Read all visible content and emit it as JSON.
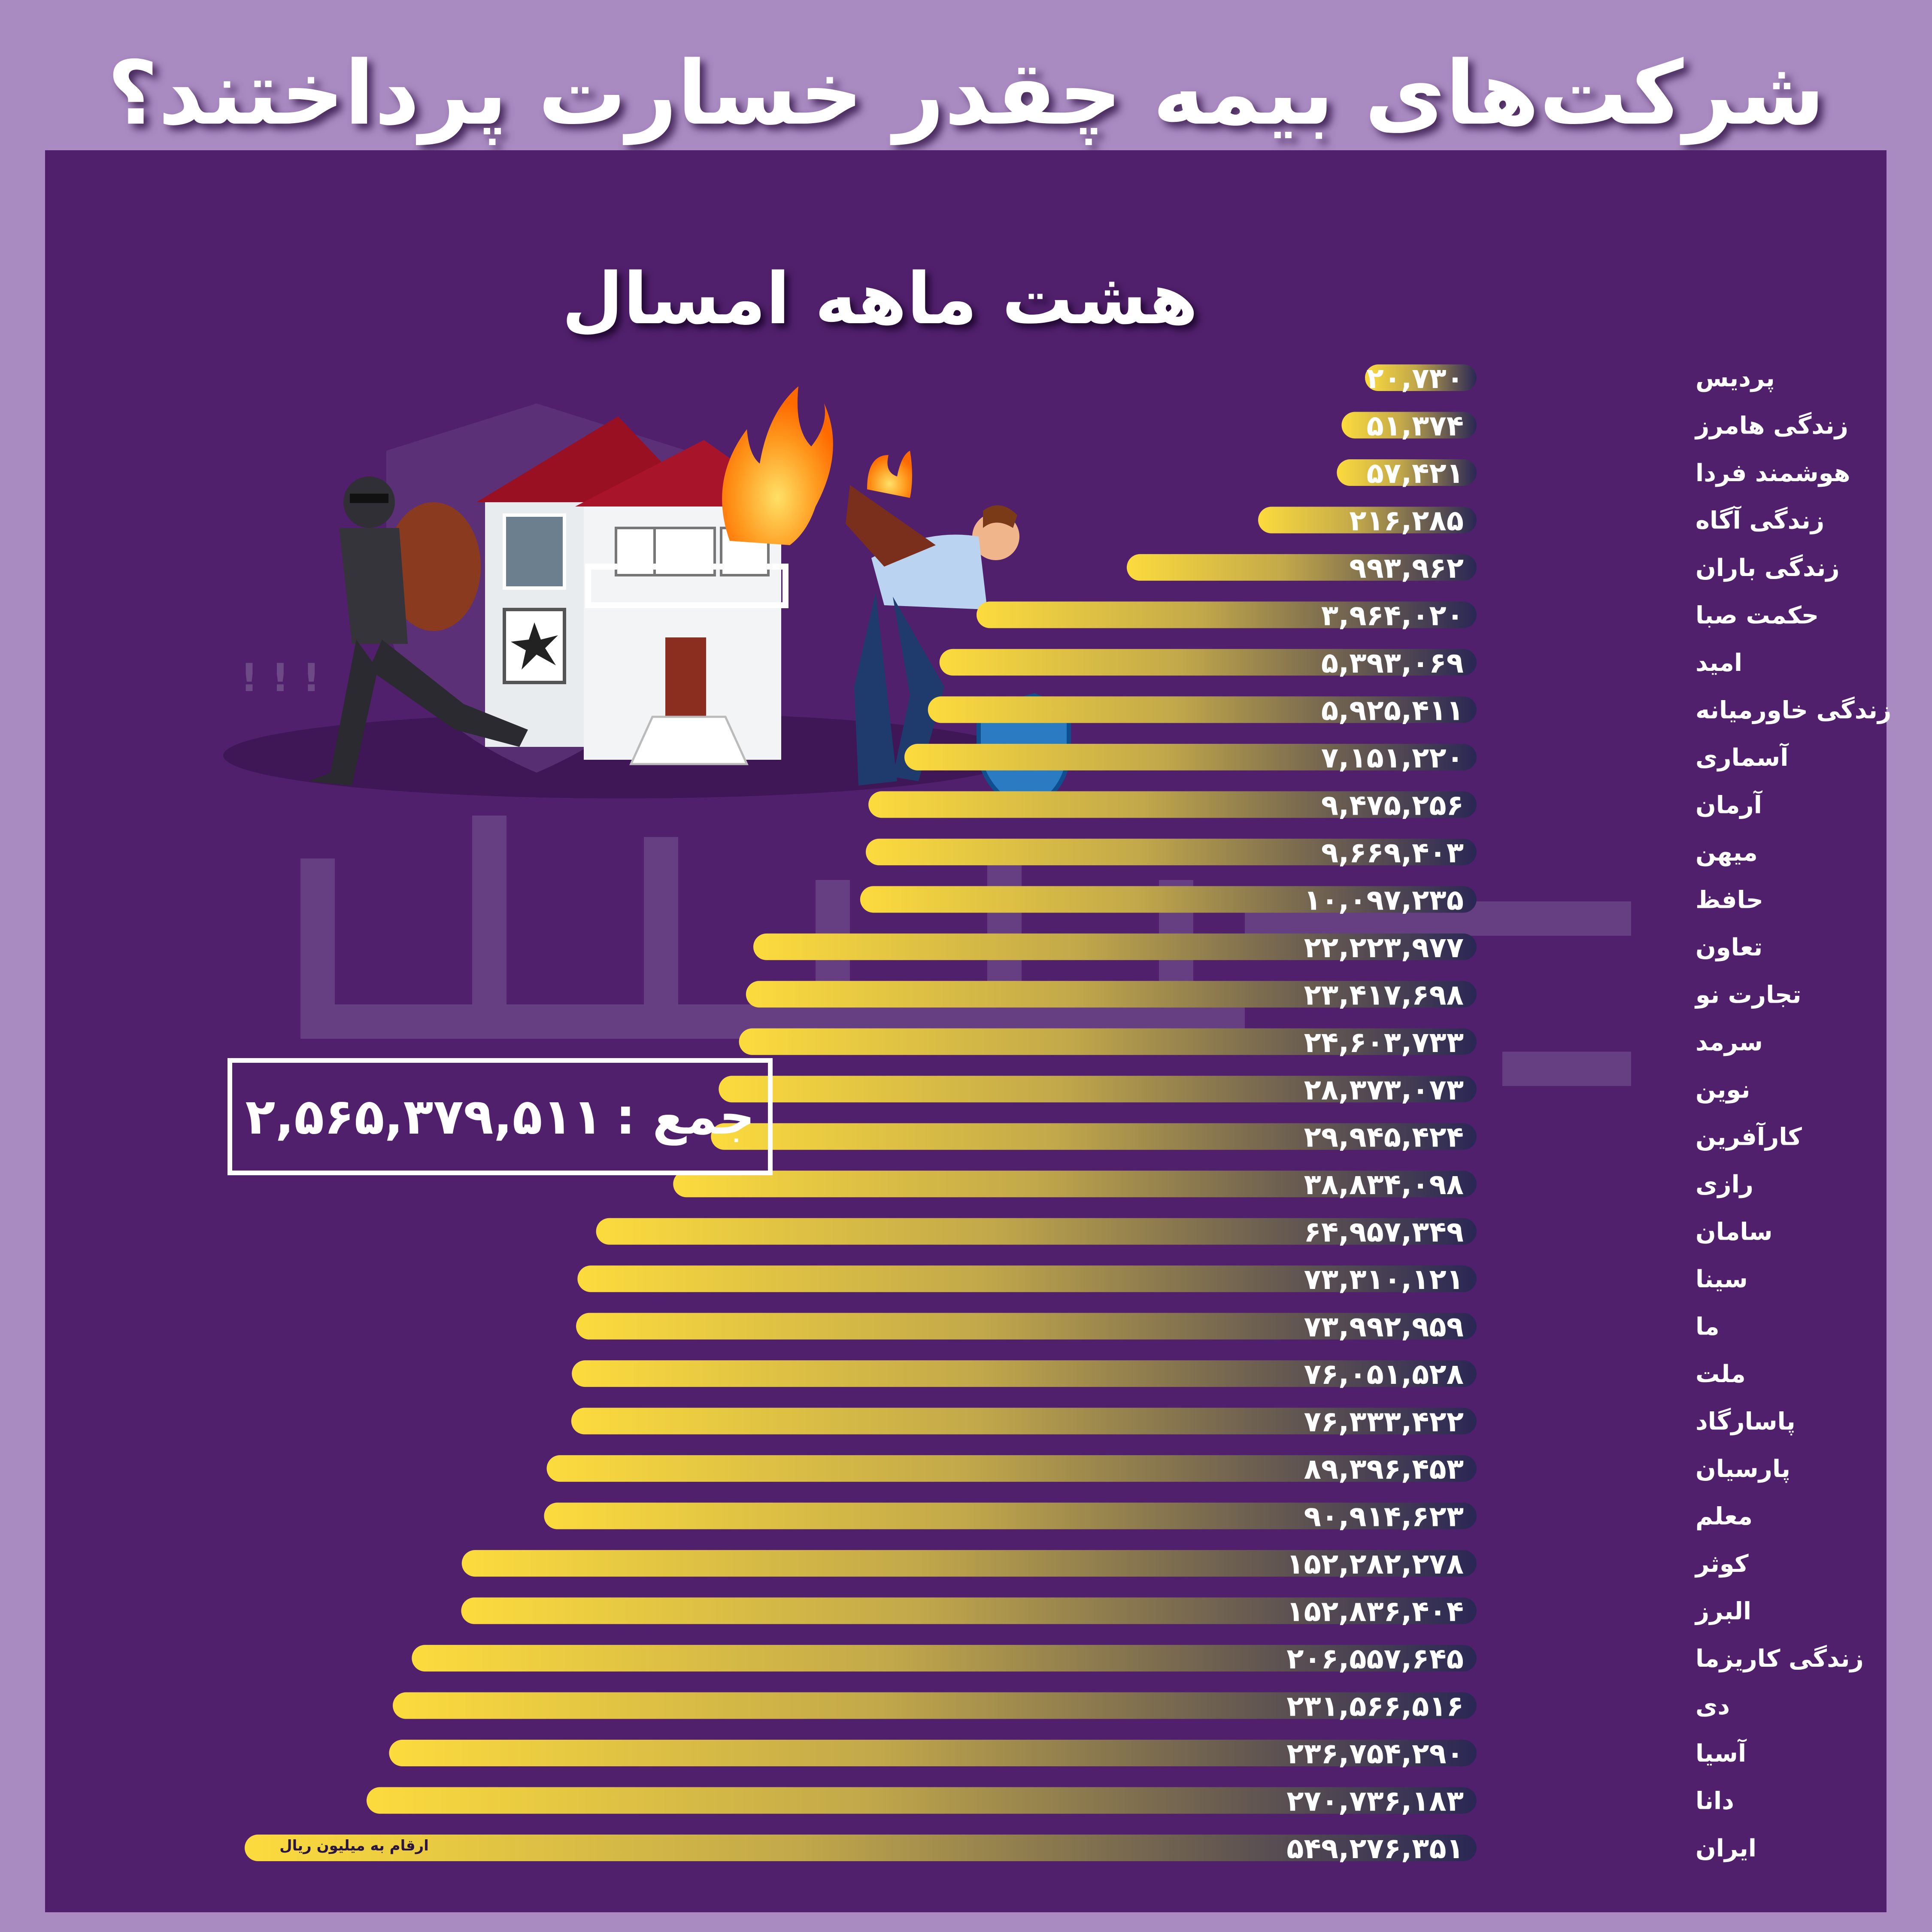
{
  "header": {
    "title": "شرکت‌های بیمه چقدر خسارت پرداختند؟"
  },
  "chart_data": {
    "type": "bar",
    "orientation": "horizontal",
    "title": "شرکت‌های بیمه چقدر خسارت پرداختند؟",
    "subtitle": "هشت ماهه امسال",
    "unit_note": "ارقام به میلیون ریال",
    "total_label": "جمع :",
    "total_value": "۲,۵۶۵,۳۷۹,۵۱۱",
    "categories": [
      "پردیس",
      "زندگی هامرز",
      "هوشمند فردا",
      "زندگی آگاه",
      "زندگی باران",
      "حکمت صبا",
      "امید",
      "زندگی خاورمیانه",
      "آسماری",
      "آرمان",
      "میهن",
      "حافظ",
      "تعاون",
      "تجارت نو",
      "سرمد",
      "نوین",
      "کارآفرین",
      "رازی",
      "سامان",
      "سینا",
      "ما",
      "ملت",
      "پاسارگاد",
      "پارسیان",
      "معلم",
      "کوثر",
      "البرز",
      "زندگی کاریزما",
      "دی",
      "آسیا",
      "دانا",
      "ایران"
    ],
    "values": [
      20730,
      51374,
      57421,
      216285,
      993962,
      3964020,
      5393069,
      5925411,
      7151220,
      9475256,
      9669403,
      10097235,
      22223977,
      23417698,
      24603733,
      28373073,
      29945424,
      38834098,
      64957349,
      73310121,
      73992959,
      76051528,
      76333422,
      89396453,
      90914623,
      152282278,
      152836404,
      206557645,
      231566516,
      236754290,
      270736183,
      549276351
    ],
    "value_labels": [
      "۲۰,۷۳۰",
      "۵۱,۳۷۴",
      "۵۷,۴۲۱",
      "۲۱۶,۲۸۵",
      "۹۹۳,۹۶۲",
      "۳,۹۶۴,۰۲۰",
      "۵,۳۹۳,۰۶۹",
      "۵,۹۲۵,۴۱۱",
      "۷,۱۵۱,۲۲۰",
      "۹,۴۷۵,۲۵۶",
      "۹,۶۶۹,۴۰۳",
      "۱۰,۰۹۷,۲۳۵",
      "۲۲,۲۲۳,۹۷۷",
      "۲۳,۴۱۷,۶۹۸",
      "۲۴,۶۰۳,۷۳۳",
      "۲۸,۳۷۳,۰۷۳",
      "۲۹,۹۴۵,۴۲۴",
      "۳۸,۸۳۴,۰۹۸",
      "۶۴,۹۵۷,۳۴۹",
      "۷۳,۳۱۰,۱۲۱",
      "۷۳,۹۹۲,۹۵۹",
      "۷۶,۰۵۱,۵۲۸",
      "۷۶,۳۳۳,۴۲۲",
      "۸۹,۳۹۶,۴۵۳",
      "۹۰,۹۱۴,۶۲۳",
      "۱۵۲,۲۸۲,۲۷۸",
      "۱۵۲,۸۳۶,۴۰۴",
      "۲۰۶,۵۵۷,۶۴۵",
      "۲۳۱,۵۶۶,۵۱۶",
      "۲۳۶,۷۵۴,۲۹۰",
      "۲۷۰,۷۳۶,۱۸۳",
      "۵۴۹,۲۷۶,۳۵۱"
    ],
    "grid": false,
    "legend": "none",
    "bar_gradient": [
      "#fcdb3d",
      "#2a2755"
    ],
    "colors": {
      "page_bg": "#a98bc2",
      "panel_bg": "#51206c",
      "text": "#ffffff"
    }
  }
}
